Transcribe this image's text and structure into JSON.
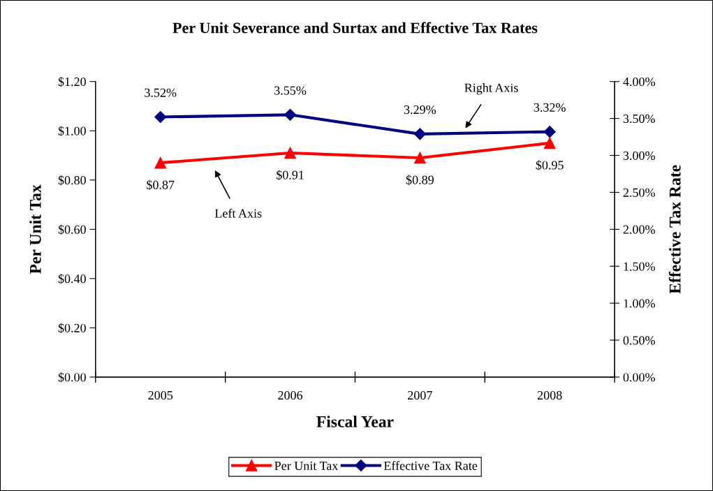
{
  "chart_data": {
    "type": "line",
    "title": "Per Unit Severance and Surtax and Effective Tax Rates",
    "xlabel": "Fiscal Year",
    "ylabel": "Per Unit Tax",
    "y2label": "Effective Tax Rate",
    "categories": [
      "2005",
      "2006",
      "2007",
      "2008"
    ],
    "series": [
      {
        "name": "Per Unit Tax",
        "color": "#ff0000",
        "values": [
          0.87,
          0.91,
          0.89,
          0.95
        ],
        "marker": "triangle",
        "value_labels": [
          "$0.87",
          "$0.91",
          "$0.89",
          "$0.95"
        ]
      },
      {
        "name": "Effective Tax Rate",
        "color": "#000080",
        "values": [
          3.52,
          3.55,
          3.29,
          3.32
        ],
        "marker": "diamond",
        "axis": "y2",
        "value_labels": [
          "3.52%",
          "3.55%",
          "3.29%",
          "3.32%"
        ]
      }
    ],
    "ylim": [
      0,
      1.2
    ],
    "yticks": [
      {
        "value": 0,
        "label": "$0.00"
      },
      {
        "value": 0.2,
        "label": "$0.20"
      },
      {
        "value": 0.4,
        "label": "$0.40"
      },
      {
        "value": 0.6,
        "label": "$0.60"
      },
      {
        "value": 0.8,
        "label": "$0.80"
      },
      {
        "value": 1.0,
        "label": "$1.00"
      },
      {
        "value": 1.2,
        "label": "$1.20"
      }
    ],
    "y2lim": [
      0,
      4
    ],
    "y2ticks": [
      {
        "value": 0,
        "label": "0.00%"
      },
      {
        "value": 0.5,
        "label": "0.50%"
      },
      {
        "value": 1,
        "label": "1.00%"
      },
      {
        "value": 1.5,
        "label": "1.50%"
      },
      {
        "value": 2,
        "label": "2.00%"
      },
      {
        "value": 2.5,
        "label": "2.50%"
      },
      {
        "value": 3,
        "label": "3.00%"
      },
      {
        "value": 3.5,
        "label": "3.50%"
      },
      {
        "value": 4,
        "label": "4.00%"
      }
    ],
    "annotations": [
      "Right Axis",
      "Left Axis"
    ],
    "legend": "bottom",
    "grid": false,
    "line_style": "solid"
  }
}
